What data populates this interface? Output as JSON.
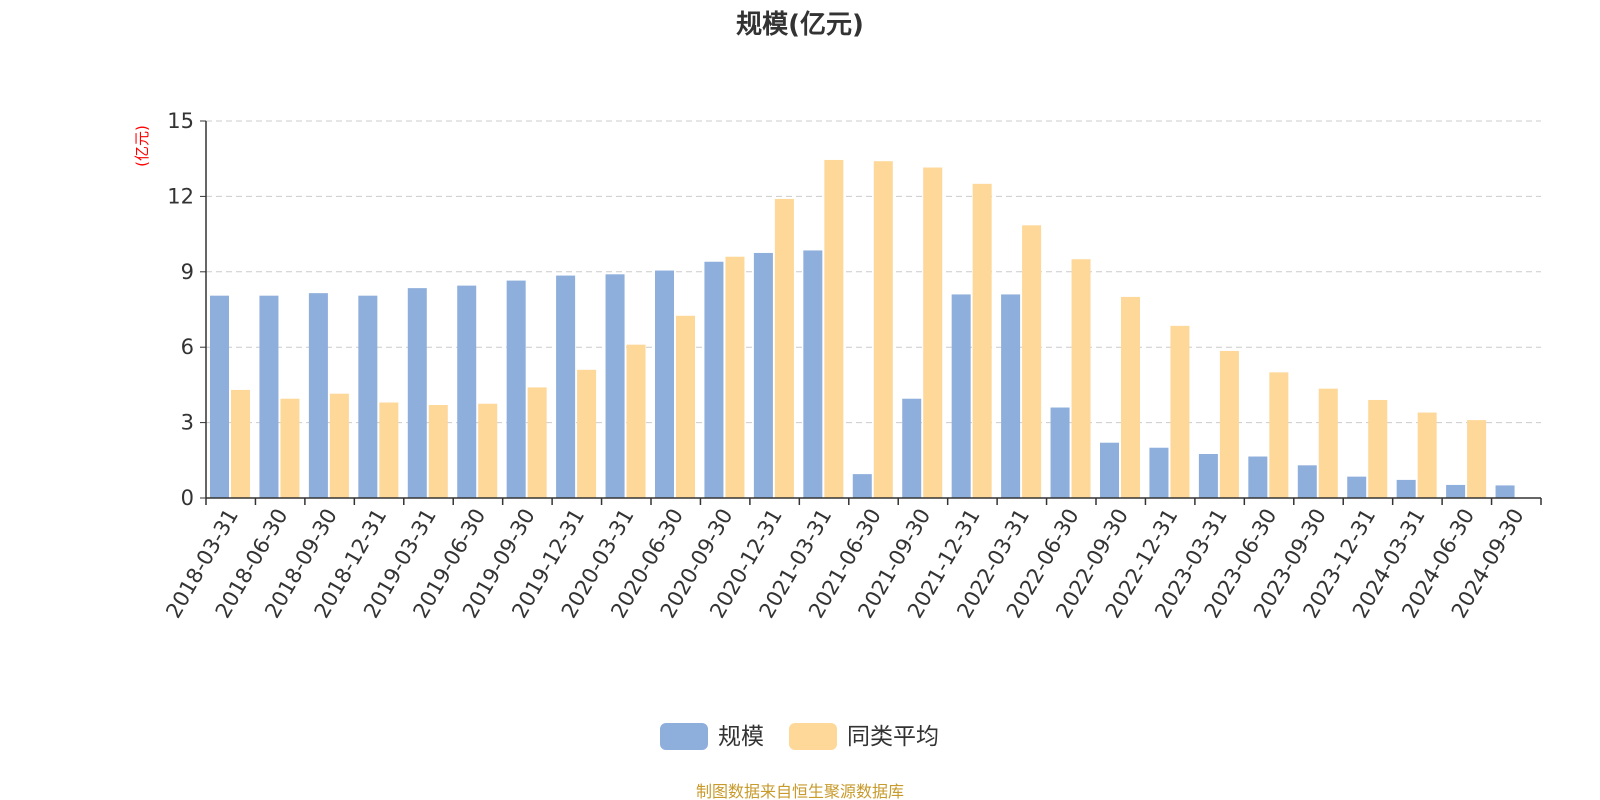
{
  "colors": {
    "series_scale": "#8eaedb",
    "series_avg": "#fdd899",
    "unit_label": "#ff0000",
    "source_note": "#c89a2b",
    "axis": "#333333",
    "grid": "#cccccc"
  },
  "footer": {
    "source": "制图数据来自恒生聚源数据库"
  },
  "chart_data": {
    "type": "bar",
    "title": "规模(亿元)",
    "ylabel": "(亿元)",
    "xlabel": "",
    "ylim": [
      0,
      15
    ],
    "yticks": [
      0,
      3,
      6,
      9,
      12,
      15
    ],
    "grid": true,
    "legend_position": "bottom-center",
    "categories": [
      "2018-03-31",
      "2018-06-30",
      "2018-09-30",
      "2018-12-31",
      "2019-03-31",
      "2019-06-30",
      "2019-09-30",
      "2019-12-31",
      "2020-03-31",
      "2020-06-30",
      "2020-09-30",
      "2020-12-31",
      "2021-03-31",
      "2021-06-30",
      "2021-09-30",
      "2021-12-31",
      "2022-03-31",
      "2022-06-30",
      "2022-09-30",
      "2022-12-31",
      "2023-03-31",
      "2023-06-30",
      "2023-09-30",
      "2023-12-31",
      "2024-03-31",
      "2024-06-30",
      "2024-09-30"
    ],
    "series": [
      {
        "name": "规模",
        "values": [
          8.05,
          8.05,
          8.15,
          8.05,
          8.35,
          8.45,
          8.65,
          8.85,
          8.9,
          9.05,
          9.4,
          9.75,
          9.85,
          0.95,
          3.95,
          8.1,
          8.1,
          3.6,
          2.2,
          2.0,
          1.75,
          1.65,
          1.3,
          0.85,
          0.72,
          0.52,
          0.5
        ]
      },
      {
        "name": "同类平均",
        "values": [
          4.3,
          3.95,
          4.15,
          3.8,
          3.7,
          3.75,
          4.4,
          5.1,
          6.1,
          7.25,
          9.6,
          11.9,
          13.45,
          13.4,
          13.15,
          12.5,
          10.85,
          9.5,
          8.0,
          6.85,
          5.85,
          5.0,
          4.35,
          3.9,
          3.4,
          3.1,
          null
        ]
      }
    ]
  }
}
